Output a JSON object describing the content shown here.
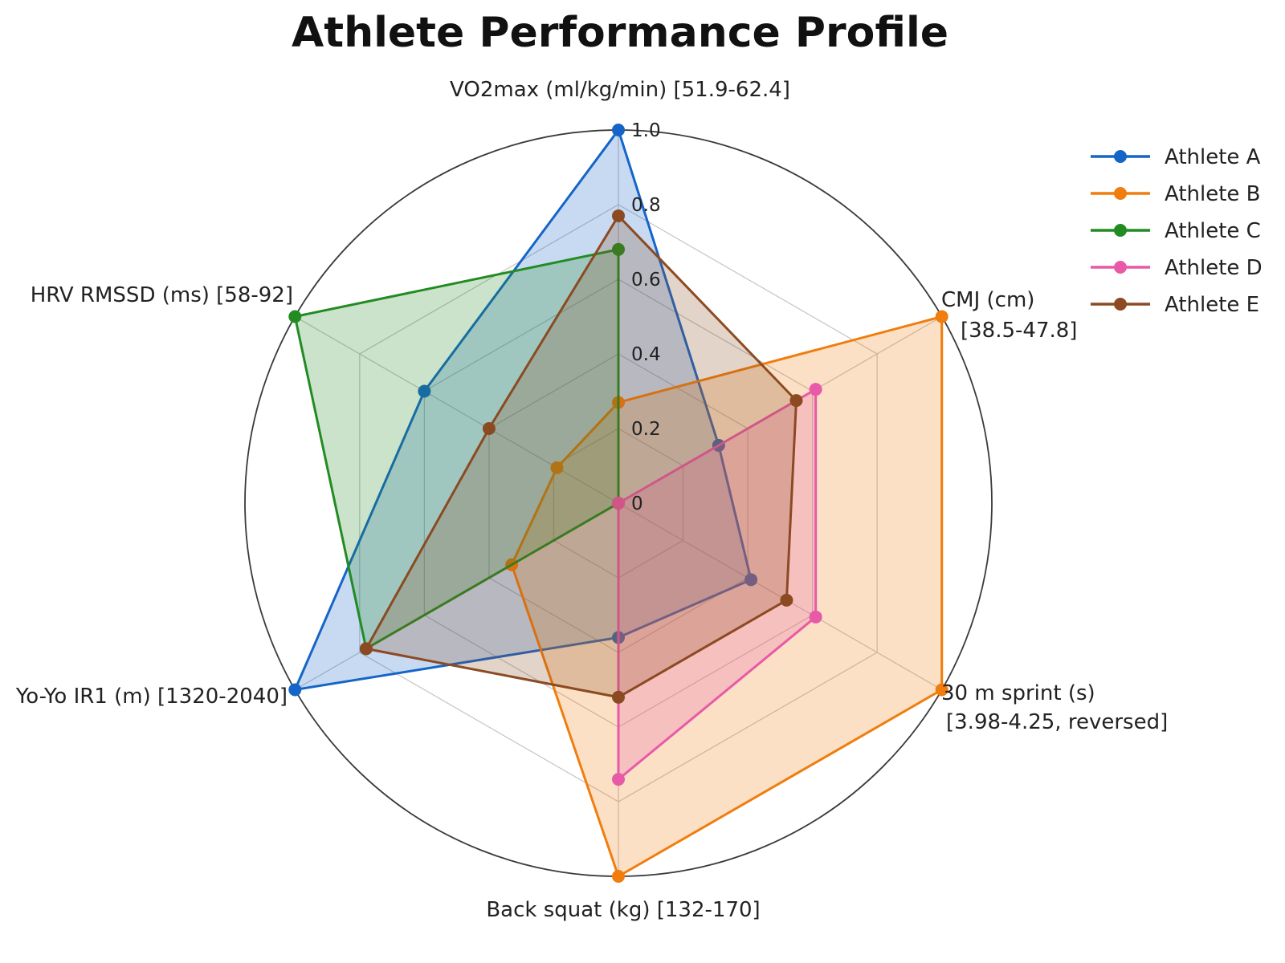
{
  "chart_data": {
    "type": "radar",
    "title": "Athlete Performance Profile",
    "axes": [
      {
        "label": "VO2max (ml/kg/min) [51.9-62.4]"
      },
      {
        "label": "CMJ (cm)\n[38.5-47.8]"
      },
      {
        "label": "30 m sprint (s)\n[3.98-4.25, reversed]"
      },
      {
        "label": "Back squat (kg) [132-170]"
      },
      {
        "label": "Yo-Yo IR1 (m) [1320-2040]"
      },
      {
        "label": "HRV RMSSD (ms) [58-92]"
      }
    ],
    "radial_ticks": [
      "0",
      "0.2",
      "0.4",
      "0.6",
      "0.8",
      "1.0"
    ],
    "radial_tick_values": [
      0,
      0.2,
      0.4,
      0.6,
      0.8,
      1.0
    ],
    "rlim": [
      0,
      1
    ],
    "grid": true,
    "legend_position": "top-right",
    "series": [
      {
        "name": "Athlete A",
        "color": "#1565c8",
        "values": [
          1.0,
          0.31,
          0.41,
          0.36,
          1.0,
          0.6
        ]
      },
      {
        "name": "Athlete B",
        "color": "#f07d0d",
        "values": [
          0.27,
          1.0,
          1.0,
          1.0,
          0.33,
          0.19
        ]
      },
      {
        "name": "Athlete C",
        "color": "#228b22",
        "values": [
          0.68,
          0.0,
          0.0,
          0.0,
          0.78,
          1.0
        ]
      },
      {
        "name": "Athlete D",
        "color": "#e85aa8",
        "values": [
          0.0,
          0.61,
          0.61,
          0.74,
          0.0,
          0.0
        ]
      },
      {
        "name": "Athlete E",
        "color": "#8b4a22",
        "values": [
          0.77,
          0.55,
          0.52,
          0.52,
          0.78,
          0.4
        ]
      }
    ]
  }
}
